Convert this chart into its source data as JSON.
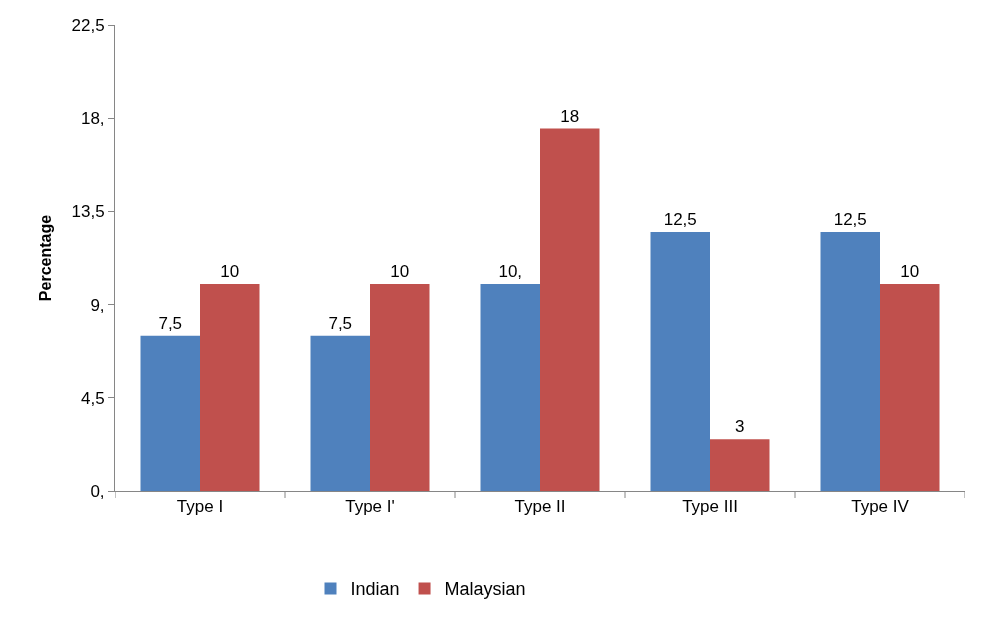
{
  "chart_data": {
    "type": "bar",
    "ylabel": "Percentage",
    "categories": [
      "Type I",
      "Type I'",
      "Type II",
      "Type III",
      "Type IV"
    ],
    "series": [
      {
        "name": "Indian",
        "color": "#4f81bd",
        "values": [
          7.5,
          7.5,
          10,
          12.5,
          12.5
        ],
        "value_labels": [
          "7,5",
          "7,5",
          "10,",
          "12,5",
          "12,5"
        ]
      },
      {
        "name": "Malaysian",
        "color": "#c0504d",
        "values": [
          10,
          10,
          17.5,
          2.5,
          10
        ],
        "value_labels": [
          "10",
          "10",
          "18",
          "3",
          "10"
        ]
      }
    ],
    "ylim": [
      0,
      22.5
    ],
    "yticks": [
      {
        "value": 0,
        "label": "0,"
      },
      {
        "value": 4.5,
        "label": "4,5"
      },
      {
        "value": 9,
        "label": "9,"
      },
      {
        "value": 13.5,
        "label": "13,5"
      },
      {
        "value": 18,
        "label": "18,"
      },
      {
        "value": 22.5,
        "label": "22,5"
      }
    ],
    "legend": "bottom"
  }
}
